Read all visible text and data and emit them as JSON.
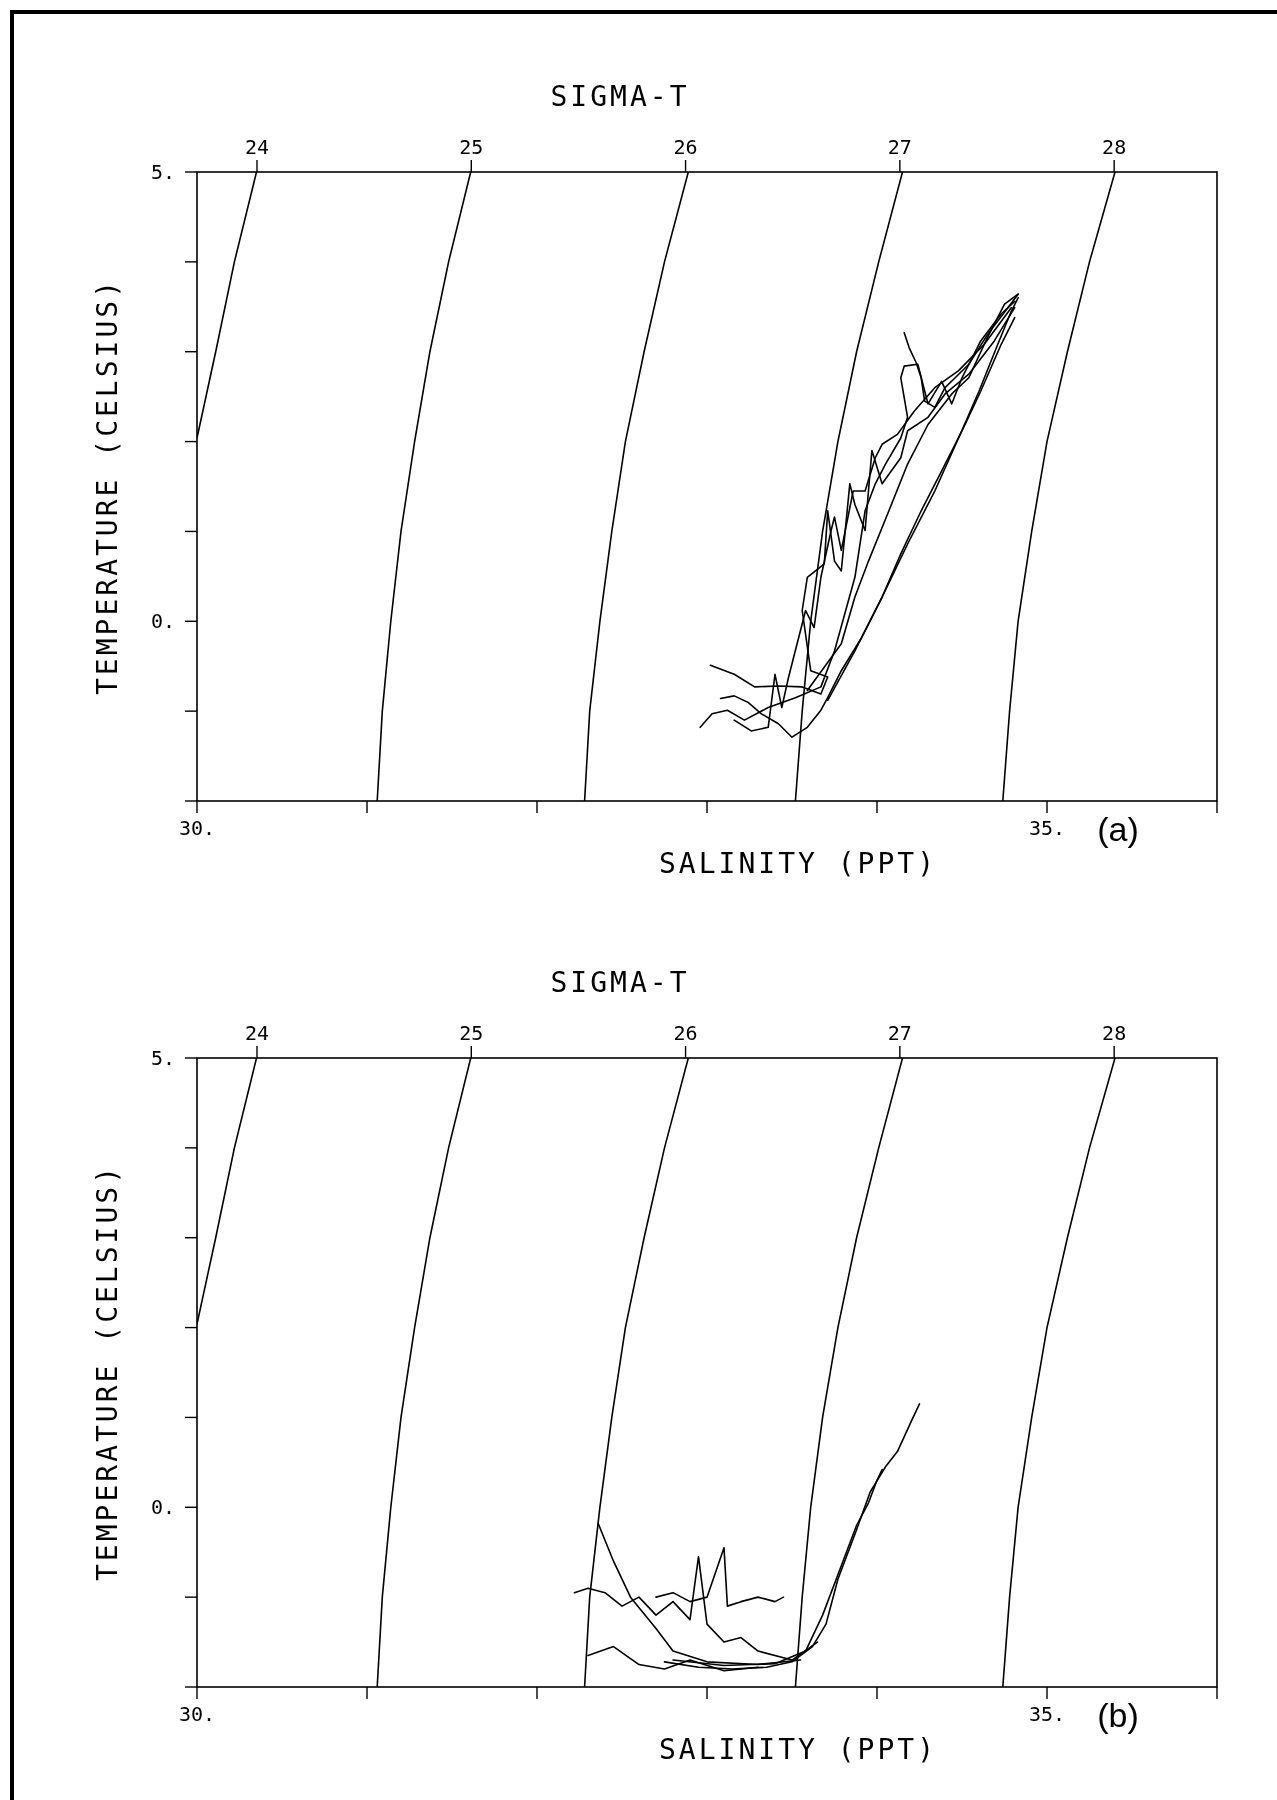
{
  "chart_data": [
    {
      "type": "line",
      "x2label": "SIGMA-T",
      "xlabel": "SALINITY (PPT)",
      "ylabel": "TEMPERATURE (CELSIUS)",
      "annotations": [
        "(a)"
      ],
      "xlim": [
        30,
        36
      ],
      "xticks": [
        {
          "value": 30,
          "label": "30."
        },
        {
          "value": 31,
          "label": null
        },
        {
          "value": 32,
          "label": null
        },
        {
          "value": 33,
          "label": null
        },
        {
          "value": 34,
          "label": null
        },
        {
          "value": 35,
          "label": "35."
        },
        {
          "value": 36,
          "label": null
        }
      ],
      "ylim": [
        -2,
        5
      ],
      "yticks": [
        {
          "value": -2,
          "label": null
        },
        {
          "value": -1,
          "label": null
        },
        {
          "value": 0,
          "label": "0."
        },
        {
          "value": 1,
          "label": null
        },
        {
          "value": 2,
          "label": null
        },
        {
          "value": 3,
          "label": null
        },
        {
          "value": 4,
          "label": null
        },
        {
          "value": 5,
          "label": "5."
        }
      ],
      "x2lim": [
        23.72,
        28.48
      ],
      "x2ticks": [
        24,
        25,
        26,
        27,
        28
      ],
      "series": [
        {
          "color": "#000000",
          "x": [
            30.0,
            30.11,
            30.22,
            30.35
          ],
          "values": [
            2.04,
            3,
            4,
            5
          ]
        },
        {
          "color": "#000000",
          "x": [
            31.06,
            31.09,
            31.14,
            31.2,
            31.28,
            31.37,
            31.48,
            31.61
          ],
          "values": [
            -2,
            -1,
            0,
            1,
            2,
            3,
            4,
            5
          ]
        },
        {
          "color": "#000000",
          "x": [
            32.28,
            32.31,
            32.37,
            32.44,
            32.52,
            32.63,
            32.75,
            32.89
          ],
          "values": [
            -2,
            -1,
            0,
            1,
            2,
            3,
            4,
            5
          ]
        },
        {
          "color": "#000000",
          "x": [
            33.52,
            33.56,
            33.61,
            33.68,
            33.77,
            33.88,
            34.01,
            34.15
          ],
          "values": [
            -2,
            -1,
            0,
            1,
            2,
            3,
            4,
            5
          ]
        },
        {
          "color": "#000000",
          "x": [
            34.74,
            34.78,
            34.83,
            34.91,
            35.0,
            35.12,
            35.25,
            35.4
          ],
          "values": [
            -2,
            -1,
            0,
            1,
            2,
            3,
            4,
            5
          ]
        },
        {
          "color": "#000000",
          "x": [
            33.71,
            33.87,
            34.03,
            34.18,
            34.34,
            34.48,
            34.6,
            34.71,
            34.79,
            34.83
          ],
          "values": [
            -0.88,
            -0.33,
            0.27,
            0.86,
            1.45,
            2.04,
            2.56,
            3.08,
            3.45,
            3.6
          ]
        },
        {
          "color": "#000000",
          "x": [
            33.59,
            33.79,
            33.87,
            33.95,
            34.07,
            34.18,
            34.3,
            34.44,
            34.54,
            34.65,
            34.75,
            34.83
          ],
          "values": [
            -0.77,
            -0.25,
            0.27,
            0.67,
            1.23,
            1.75,
            2.19,
            2.53,
            2.71,
            3.16,
            3.53,
            3.64
          ]
        },
        {
          "color": "#000000",
          "x": [
            32.96,
            33.03,
            33.12,
            33.22,
            33.36,
            33.52,
            33.67,
            33.75,
            33.87,
            33.93,
            33.99,
            34.05,
            34.14,
            34.18,
            34.14,
            34.16,
            34.24,
            34.3,
            34.38,
            34.44,
            34.5,
            34.61,
            34.73,
            34.81
          ],
          "values": [
            -1.18,
            -1.03,
            -0.99,
            -1.1,
            -0.96,
            -0.85,
            -0.73,
            -0.33,
            0.49,
            1.23,
            1.53,
            1.75,
            2.04,
            2.27,
            2.71,
            2.84,
            2.86,
            2.42,
            2.67,
            2.42,
            2.71,
            3.12,
            3.42,
            3.56
          ]
        },
        {
          "color": "#000000",
          "x": [
            34.16,
            34.19,
            34.23,
            34.26,
            34.28,
            34.34,
            34.4,
            34.46,
            34.54,
            34.65,
            34.77,
            34.83
          ],
          "values": [
            3.21,
            3.04,
            2.88,
            2.71,
            2.45,
            2.38,
            2.6,
            2.71,
            2.86,
            3.19,
            3.49,
            3.64
          ]
        },
        {
          "color": "#000000",
          "x": [
            33.02,
            33.16,
            33.28,
            33.42,
            33.56,
            33.67,
            33.71,
            33.61,
            33.56,
            33.59,
            33.69,
            33.71,
            33.75,
            33.79,
            33.84,
            33.87,
            33.93,
            33.97,
            34.03,
            34.14,
            34.18,
            34.3,
            34.4,
            34.54,
            34.69,
            34.81
          ],
          "values": [
            -0.49,
            -0.59,
            -0.73,
            -0.72,
            -0.73,
            -0.81,
            -0.62,
            -0.55,
            0.12,
            0.49,
            0.64,
            1.23,
            0.67,
            0.56,
            1.53,
            1.3,
            1.01,
            1.9,
            1.53,
            1.82,
            2.12,
            2.27,
            2.53,
            2.75,
            3.12,
            3.49
          ]
        },
        {
          "color": "#000000",
          "x": [
            33.08,
            33.16,
            33.24,
            33.32,
            33.42,
            33.5,
            33.59,
            33.67,
            33.71,
            33.79,
            33.91,
            34.03,
            34.14,
            34.26,
            34.38,
            34.5,
            34.61,
            34.73,
            34.81
          ],
          "values": [
            -0.86,
            -0.83,
            -0.9,
            -1.03,
            -1.14,
            -1.29,
            -1.18,
            -0.99,
            -0.85,
            -0.55,
            -0.18,
            0.27,
            0.75,
            1.23,
            1.67,
            2.12,
            2.56,
            3.08,
            3.38
          ]
        },
        {
          "color": "#000000",
          "x": [
            33.16,
            33.26,
            33.36,
            33.4,
            33.44,
            33.48,
            33.58,
            33.63,
            33.67,
            33.73,
            33.75,
            33.79,
            33.86,
            33.93,
            33.99,
            34.03,
            34.12,
            34.22,
            34.34,
            34.48,
            34.63,
            34.79
          ],
          "values": [
            -1.1,
            -1.22,
            -1.18,
            -0.59,
            -0.96,
            -0.62,
            0.12,
            -0.07,
            0.49,
            1.01,
            1.16,
            0.79,
            1.45,
            1.45,
            1.82,
            1.97,
            2.08,
            2.34,
            2.6,
            2.79,
            3.08,
            3.49
          ]
        }
      ]
    },
    {
      "type": "line",
      "x2label": "SIGMA-T",
      "xlabel": "SALINITY (PPT)",
      "ylabel": "TEMPERATURE (CELSIUS)",
      "annotations": [
        "(b)"
      ],
      "xlim": [
        30,
        36
      ],
      "xticks": [
        {
          "value": 30,
          "label": "30."
        },
        {
          "value": 31,
          "label": null
        },
        {
          "value": 32,
          "label": null
        },
        {
          "value": 33,
          "label": null
        },
        {
          "value": 34,
          "label": null
        },
        {
          "value": 35,
          "label": "35."
        },
        {
          "value": 36,
          "label": null
        }
      ],
      "ylim": [
        -2,
        5
      ],
      "yticks": [
        {
          "value": -2,
          "label": null
        },
        {
          "value": -1,
          "label": null
        },
        {
          "value": 0,
          "label": "0."
        },
        {
          "value": 1,
          "label": null
        },
        {
          "value": 2,
          "label": null
        },
        {
          "value": 3,
          "label": null
        },
        {
          "value": 4,
          "label": null
        },
        {
          "value": 5,
          "label": "5."
        }
      ],
      "x2lim": [
        23.72,
        28.48
      ],
      "x2ticks": [
        24,
        25,
        26,
        27,
        28
      ],
      "series": [
        {
          "color": "#000000",
          "x": [
            30.0,
            30.11,
            30.22,
            30.35
          ],
          "values": [
            2.04,
            3,
            4,
            5
          ]
        },
        {
          "color": "#000000",
          "x": [
            31.06,
            31.09,
            31.14,
            31.2,
            31.28,
            31.37,
            31.48,
            31.61
          ],
          "values": [
            -2,
            -1,
            0,
            1,
            2,
            3,
            4,
            5
          ]
        },
        {
          "color": "#000000",
          "x": [
            32.28,
            32.31,
            32.37,
            32.44,
            32.52,
            32.63,
            32.75,
            32.89
          ],
          "values": [
            -2,
            -1,
            0,
            1,
            2,
            3,
            4,
            5
          ]
        },
        {
          "color": "#000000",
          "x": [
            33.52,
            33.56,
            33.61,
            33.68,
            33.77,
            33.88,
            34.01,
            34.15
          ],
          "values": [
            -2,
            -1,
            0,
            1,
            2,
            3,
            4,
            5
          ]
        },
        {
          "color": "#000000",
          "x": [
            34.74,
            34.78,
            34.83,
            34.91,
            35.0,
            35.12,
            35.25,
            35.4
          ],
          "values": [
            -2,
            -1,
            0,
            1,
            2,
            3,
            4,
            5
          ]
        },
        {
          "color": "#000000",
          "x": [
            32.75,
            32.95,
            33.15,
            33.35,
            33.5,
            33.62,
            33.7,
            33.77,
            33.87,
            33.96,
            34.05,
            34.12,
            34.2,
            34.25
          ],
          "values": [
            -1.72,
            -1.78,
            -1.8,
            -1.78,
            -1.72,
            -1.55,
            -1.3,
            -0.8,
            -0.3,
            0.17,
            0.45,
            0.62,
            0.95,
            1.15
          ]
        },
        {
          "color": "#000000",
          "x": [
            32.8,
            33.1,
            33.4,
            33.58,
            33.68,
            33.78,
            33.88,
            33.95,
            34.0,
            34.03
          ],
          "values": [
            -1.7,
            -1.76,
            -1.74,
            -1.6,
            -1.2,
            -0.7,
            -0.2,
            0.05,
            0.3,
            0.42
          ]
        },
        {
          "color": "#000000",
          "x": [
            32.22,
            32.3,
            32.4,
            32.5,
            32.6,
            32.7,
            32.8,
            32.9,
            32.95,
            33.0,
            33.1,
            33.2,
            33.3,
            33.5,
            33.65
          ],
          "values": [
            -0.95,
            -0.9,
            -0.95,
            -1.1,
            -1.0,
            -1.2,
            -1.05,
            -1.25,
            -0.55,
            -1.3,
            -1.5,
            -1.45,
            -1.6,
            -1.7,
            -1.5
          ]
        },
        {
          "color": "#000000",
          "x": [
            32.36,
            32.45,
            32.55,
            32.7,
            32.8,
            33.0,
            33.3,
            33.55
          ],
          "values": [
            -0.18,
            -0.6,
            -1.0,
            -1.35,
            -1.6,
            -1.72,
            -1.75,
            -1.7
          ]
        },
        {
          "color": "#000000",
          "x": [
            32.7,
            32.8,
            32.9,
            33.0,
            33.1,
            33.12,
            33.2,
            33.3,
            33.4,
            33.45
          ],
          "values": [
            -1.0,
            -0.95,
            -1.05,
            -1.0,
            -0.45,
            -1.1,
            -1.05,
            -1.0,
            -1.05,
            -1.0
          ]
        },
        {
          "color": "#000000",
          "x": [
            32.3,
            32.45,
            32.6,
            32.75,
            32.9,
            33.1,
            33.3
          ],
          "values": [
            -1.65,
            -1.55,
            -1.75,
            -1.8,
            -1.7,
            -1.82,
            -1.78
          ]
        }
      ]
    }
  ]
}
